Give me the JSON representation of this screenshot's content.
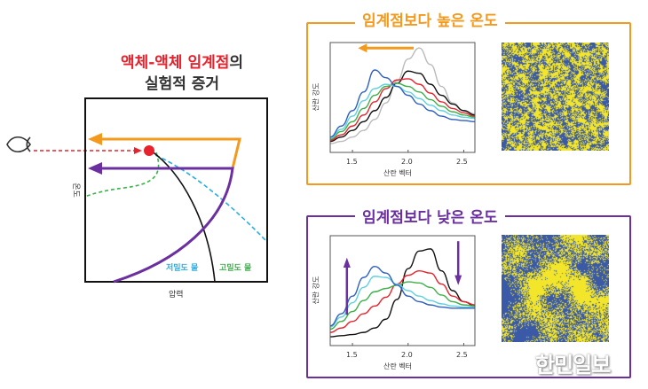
{
  "left_diagram": {
    "title_red": "액체-액체 임계점",
    "title_suffix": "의",
    "subtitle": "실험적 증거",
    "y_label": "온도",
    "x_label": "압력",
    "label_low_density": "저밀도 물",
    "label_high_density": "고밀도 물",
    "colors": {
      "critical_point": "#e8222d",
      "above": "#f39a1e",
      "below": "#6b2fa0",
      "low_density": "#29aee0",
      "high_density": "#3db04a"
    },
    "icons": [
      "eye-icon"
    ]
  },
  "panels": [
    {
      "title": "임계점보다 높은 온도",
      "color": "#f39a1e",
      "arrows": [
        "left"
      ],
      "chart_data": {
        "type": "line",
        "xlabel": "산란 벡터",
        "ylabel": "산란 강도",
        "xlim": [
          1.3,
          2.6
        ],
        "ylim": [
          0,
          1
        ],
        "xticks": [
          "1.5",
          "2.0",
          "2.5"
        ],
        "x": [
          1.3,
          1.4,
          1.5,
          1.6,
          1.7,
          1.8,
          1.9,
          2.0,
          2.1,
          2.2,
          2.3,
          2.4,
          2.5,
          2.6
        ],
        "series": [
          {
            "color": "#bbbbbb",
            "values": [
              0.08,
              0.1,
              0.14,
              0.2,
              0.3,
              0.45,
              0.65,
              0.85,
              0.95,
              0.8,
              0.6,
              0.45,
              0.38,
              0.35
            ]
          },
          {
            "color": "#111111",
            "values": [
              0.1,
              0.14,
              0.2,
              0.28,
              0.38,
              0.5,
              0.63,
              0.74,
              0.72,
              0.62,
              0.52,
              0.44,
              0.38,
              0.34
            ]
          },
          {
            "color": "#e8222d",
            "values": [
              0.11,
              0.16,
              0.24,
              0.34,
              0.46,
              0.58,
              0.66,
              0.67,
              0.62,
              0.54,
              0.46,
              0.4,
              0.36,
              0.33
            ]
          },
          {
            "color": "#3db04a",
            "values": [
              0.12,
              0.19,
              0.28,
              0.4,
              0.52,
              0.6,
              0.63,
              0.6,
              0.55,
              0.48,
              0.42,
              0.37,
              0.34,
              0.32
            ]
          },
          {
            "color": "#5fd0e0",
            "values": [
              0.13,
              0.21,
              0.33,
              0.47,
              0.58,
              0.62,
              0.6,
              0.55,
              0.49,
              0.43,
              0.38,
              0.34,
              0.32,
              0.31
            ]
          },
          {
            "color": "#2f5fc0",
            "values": [
              0.14,
              0.24,
              0.38,
              0.55,
              0.75,
              0.68,
              0.6,
              0.52,
              0.44,
              0.38,
              0.33,
              0.3,
              0.29,
              0.28
            ]
          }
        ]
      },
      "simulation_colors": [
        "#f2e52a",
        "#3a5aa8"
      ]
    },
    {
      "title": "임계점보다 낮은 온도",
      "color": "#6b2fa0",
      "arrows": [
        "up",
        "down"
      ],
      "chart_data": {
        "type": "line",
        "xlabel": "산란 벡터",
        "ylabel": "산란 강도",
        "xlim": [
          1.3,
          2.6
        ],
        "ylim": [
          0,
          1
        ],
        "xticks": [
          "1.5",
          "2.0",
          "2.5"
        ],
        "x": [
          1.3,
          1.4,
          1.5,
          1.6,
          1.7,
          1.8,
          1.9,
          2.0,
          2.1,
          2.2,
          2.3,
          2.4,
          2.5,
          2.6
        ],
        "series": [
          {
            "color": "#111111",
            "values": [
              0.08,
              0.09,
              0.1,
              0.12,
              0.16,
              0.24,
              0.42,
              0.7,
              0.86,
              0.88,
              0.68,
              0.5,
              0.4,
              0.36
            ]
          },
          {
            "color": "#e8222d",
            "values": [
              0.12,
              0.16,
              0.22,
              0.29,
              0.36,
              0.44,
              0.56,
              0.64,
              0.68,
              0.66,
              0.56,
              0.45,
              0.4,
              0.37
            ]
          },
          {
            "color": "#3db04a",
            "values": [
              0.15,
              0.22,
              0.31,
              0.41,
              0.49,
              0.52,
              0.55,
              0.58,
              0.57,
              0.53,
              0.46,
              0.4,
              0.37,
              0.36
            ]
          },
          {
            "color": "#5fd0e0",
            "values": [
              0.17,
              0.26,
              0.39,
              0.53,
              0.63,
              0.62,
              0.56,
              0.5,
              0.45,
              0.41,
              0.38,
              0.36,
              0.35,
              0.35
            ]
          },
          {
            "color": "#2f5fc0",
            "values": [
              0.18,
              0.29,
              0.45,
              0.62,
              0.72,
              0.66,
              0.55,
              0.45,
              0.4,
              0.37,
              0.35,
              0.34,
              0.34,
              0.34
            ]
          }
        ]
      },
      "simulation_colors": [
        "#f2e52a",
        "#3a5aa8"
      ]
    }
  ],
  "watermark": "한민일보"
}
